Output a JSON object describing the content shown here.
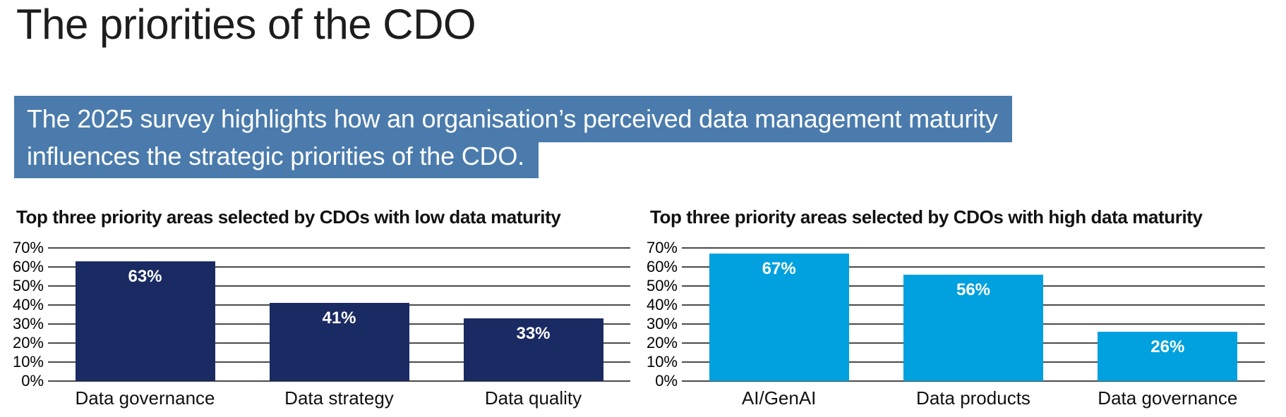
{
  "page": {
    "title": "The priorities of the CDO",
    "highlight": {
      "lines": [
        "The 2025 survey highlights how an organisation’s perceived data management maturity",
        "influences the strategic priorities of the CDO."
      ],
      "background_color": "#4a7bac",
      "text_color": "#ffffff"
    }
  },
  "chart_data": [
    {
      "type": "bar",
      "title": "Top three priority areas selected by CDOs with low data maturity",
      "categories": [
        "Data governance",
        "Data strategy",
        "Data quality"
      ],
      "values": [
        63,
        41,
        33
      ],
      "value_labels": [
        "63%",
        "41%",
        "33%"
      ],
      "yticks": [
        {
          "v": 0,
          "label": "0%"
        },
        {
          "v": 10,
          "label": "10%"
        },
        {
          "v": 20,
          "label": "20%"
        },
        {
          "v": 30,
          "label": "30%"
        },
        {
          "v": 40,
          "label": "40%"
        },
        {
          "v": 50,
          "label": "50%"
        },
        {
          "v": 60,
          "label": "60%"
        },
        {
          "v": 70,
          "label": "70%"
        }
      ],
      "ylim": [
        0,
        70
      ],
      "grid": true,
      "legend": false,
      "bar_color": "#1a2a62",
      "value_label_color": "#ffffff",
      "gridline_color": "#4a4a4a",
      "axis_text_color": "#000000"
    },
    {
      "type": "bar",
      "title": "Top three priority areas selected by CDOs with high data maturity",
      "categories": [
        "AI/GenAI",
        "Data products",
        "Data governance"
      ],
      "values": [
        67,
        56,
        26
      ],
      "value_labels": [
        "67%",
        "56%",
        "26%"
      ],
      "yticks": [
        {
          "v": 0,
          "label": "0%"
        },
        {
          "v": 10,
          "label": "10%"
        },
        {
          "v": 20,
          "label": "20%"
        },
        {
          "v": 30,
          "label": "30%"
        },
        {
          "v": 40,
          "label": "40%"
        },
        {
          "v": 50,
          "label": "50%"
        },
        {
          "v": 60,
          "label": "60%"
        },
        {
          "v": 70,
          "label": "70%"
        }
      ],
      "ylim": [
        0,
        70
      ],
      "grid": true,
      "legend": false,
      "bar_color": "#00a1de",
      "value_label_color": "#ffffff",
      "gridline_color": "#4a4a4a",
      "axis_text_color": "#000000"
    }
  ]
}
